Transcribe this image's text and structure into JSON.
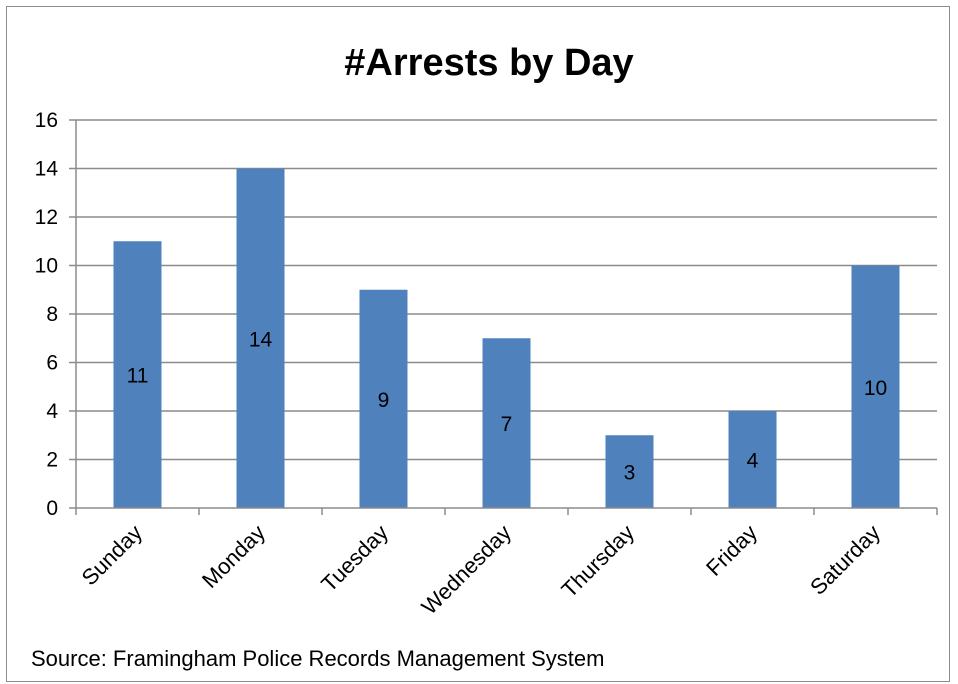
{
  "chart_data": {
    "type": "bar",
    "title": "#Arrests by Day",
    "categories": [
      "Sunday",
      "Monday",
      "Tuesday",
      "Wednesday",
      "Thursday",
      "Friday",
      "Saturday"
    ],
    "values": [
      11,
      14,
      9,
      7,
      3,
      4,
      10
    ],
    "ylim": [
      0,
      16
    ],
    "yticks": [
      "0",
      "2",
      "4",
      "6",
      "8",
      "10",
      "12",
      "14",
      "16"
    ],
    "grid": true,
    "bar_color": "#4f81bd",
    "data_labels": true
  },
  "source_note": "Source:  Framingham Police Records Management System"
}
